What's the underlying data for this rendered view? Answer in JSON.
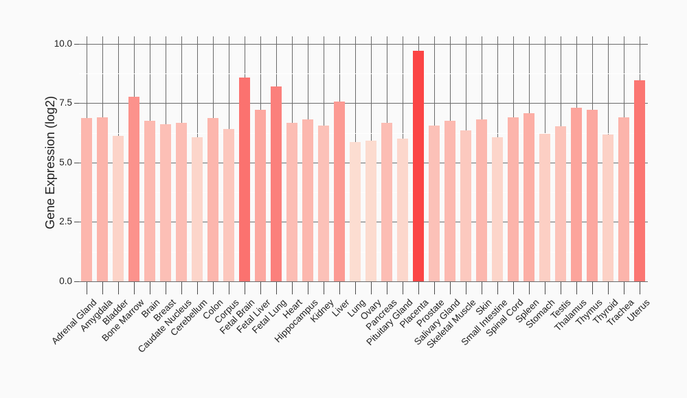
{
  "chart_data": {
    "type": "bar",
    "title": "",
    "ylabel": "Gene Expression (log2)",
    "xlabel": "",
    "legend": "none",
    "grid": "major horizontal and per-bar vertical lines in dark gray; faint white minor lines",
    "ylim": [
      0,
      10.35
    ],
    "y_ticks": [
      0,
      2.5,
      5,
      7.5,
      10
    ],
    "y_tick_labels": [
      "0.0",
      "2.5",
      "5.0",
      "7.5",
      "10.0"
    ],
    "y_minor_ticks": [
      1.25,
      3.75,
      6.25,
      8.75
    ],
    "categories": [
      "Adrenal Gland",
      "Amygdala",
      "Bladder",
      "Bone Marrow",
      "Brain",
      "Breast",
      "Caudate Nucleus",
      "Cerebellum",
      "Colon",
      "Corpus",
      "Fetal Brain",
      "Fetal Liver",
      "Fetal Lung",
      "Heart",
      "Hippocampus",
      "Kidney",
      "Liver",
      "Lung",
      "Ovary",
      "Pancreas",
      "Pituitary Gland",
      "Placenta",
      "Prostate",
      "Salivary Gland",
      "Skeletal Muscle",
      "Skin",
      "Small Intestine",
      "Spinal Cord",
      "Spleen",
      "Stomach",
      "Testis",
      "Thalamus",
      "Thymus",
      "Thyroid",
      "Trachea",
      "Uterus"
    ],
    "values": [
      6.9,
      6.95,
      6.15,
      7.8,
      6.8,
      6.65,
      6.7,
      6.1,
      6.9,
      6.45,
      8.6,
      7.25,
      8.25,
      6.7,
      6.85,
      6.6,
      7.6,
      5.9,
      5.95,
      6.7,
      6.05,
      9.75,
      6.6,
      6.8,
      6.4,
      6.85,
      6.1,
      6.95,
      7.1,
      6.25,
      6.55,
      7.35,
      7.25,
      6.2,
      6.95,
      8.5
    ],
    "color_scale": {
      "description": "bar fill mapped to value, light pink (low) to red (high)",
      "min_value": 5.9,
      "max_value": 9.75,
      "low": "#fcddd1",
      "high": "#fb4545"
    }
  },
  "colors": {
    "background": "#fafafa",
    "grid_major": "#6a6a6a",
    "grid_minor": "#ffffff",
    "axis_tick": "#4a4a4a",
    "text": "#202020"
  }
}
